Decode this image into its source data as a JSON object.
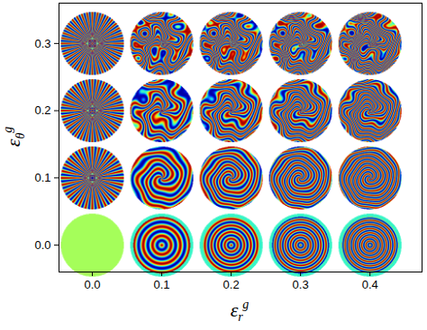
{
  "chart_data": {
    "type": "image_grid",
    "xlabel": {
      "text": "ε",
      "sub": "r",
      "sup": "g"
    },
    "ylabel": {
      "text": "ε",
      "sub": "θ",
      "sup": "g"
    },
    "xlim": [
      -0.048,
      0.475
    ],
    "ylim": [
      -0.04,
      0.36
    ],
    "xticks": [
      {
        "value": 0,
        "label": "0.0"
      },
      {
        "value": 0.1,
        "label": "0.1"
      },
      {
        "value": 0.2,
        "label": "0.2"
      },
      {
        "value": 0.3,
        "label": "0.3"
      },
      {
        "value": 0.4,
        "label": "0.4"
      }
    ],
    "yticks": [
      {
        "value": 0,
        "label": "0.0"
      },
      {
        "value": 0.1,
        "label": "0.1"
      },
      {
        "value": 0.2,
        "label": "0.2"
      },
      {
        "value": 0.3,
        "label": "0.3"
      }
    ]
  }
}
